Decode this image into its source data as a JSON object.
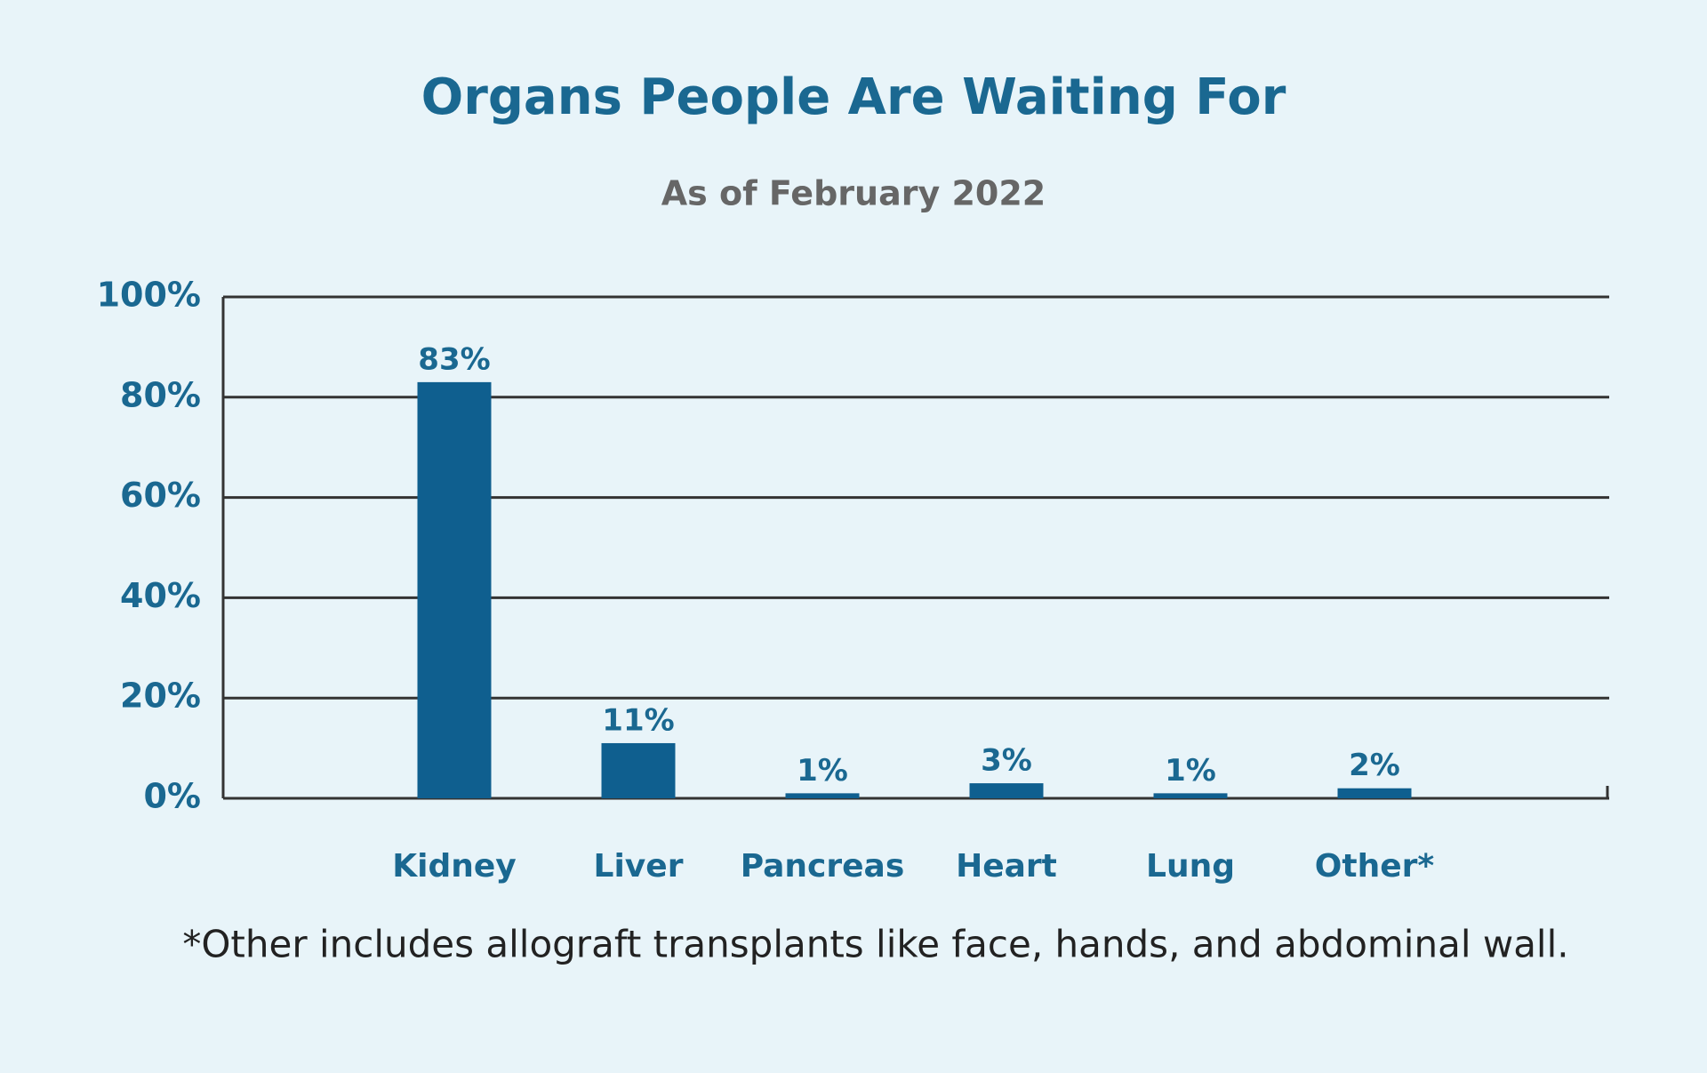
{
  "chart_data": {
    "type": "bar",
    "title": "Organs People Are Waiting For",
    "subtitle": "As of February 2022",
    "categories": [
      "Kidney",
      "Liver",
      "Pancreas",
      "Heart",
      "Lung",
      "Other*"
    ],
    "values": [
      83,
      11,
      1,
      3,
      1,
      2
    ],
    "value_labels": [
      "83%",
      "11%",
      "1%",
      "3%",
      "1%",
      "2%"
    ],
    "color": "#0f5f8f",
    "ylim": [
      0,
      100
    ],
    "yticks": [
      {
        "value": 0,
        "label": "0%"
      },
      {
        "value": 20,
        "label": "20%"
      },
      {
        "value": 40,
        "label": "40%"
      },
      {
        "value": 60,
        "label": "60%"
      },
      {
        "value": 80,
        "label": "80%"
      },
      {
        "value": 100,
        "label": "100%"
      }
    ],
    "grid": true,
    "annotation": "*Other includes allograft transplants like face, hands, and abdominal wall."
  }
}
